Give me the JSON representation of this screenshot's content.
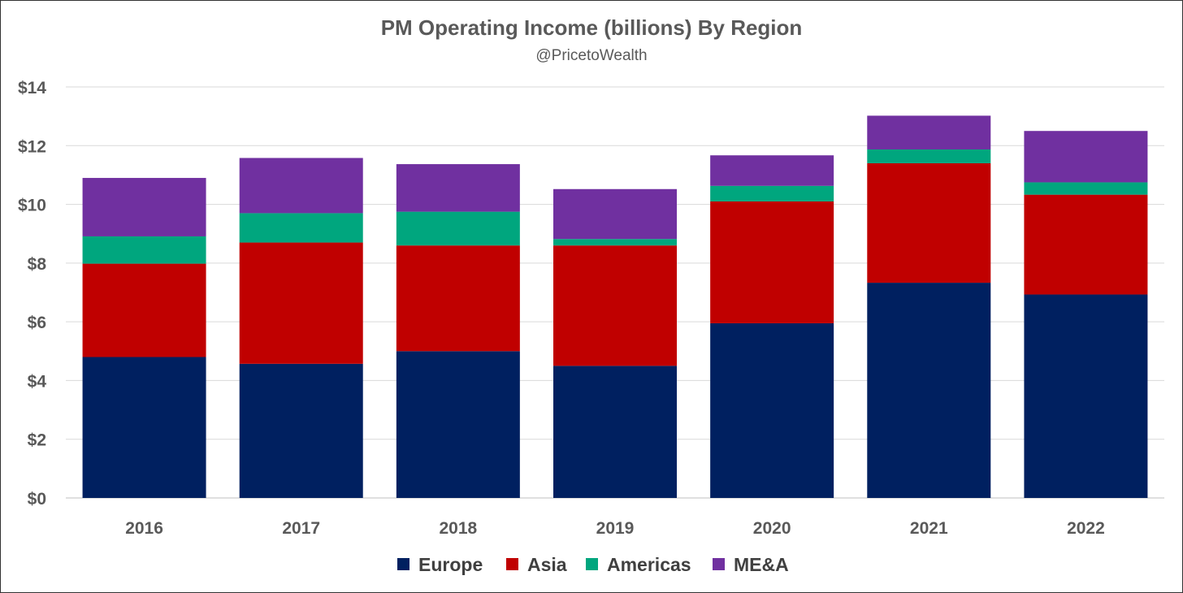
{
  "chart_data": {
    "type": "bar",
    "stacked": true,
    "title": "PM Operating Income (billions) By Region",
    "subtitle": "@PricetoWealth",
    "xlabel": "",
    "ylabel": "",
    "ylim": [
      0,
      14
    ],
    "yticks": [
      0,
      2,
      4,
      6,
      8,
      10,
      12,
      14
    ],
    "ytick_labels": [
      "$0",
      "$2",
      "$4",
      "$6",
      "$8",
      "$10",
      "$12",
      "$14"
    ],
    "grid": true,
    "legend_position": "bottom",
    "categories": [
      "2016",
      "2017",
      "2018",
      "2019",
      "2020",
      "2021",
      "2022"
    ],
    "series": [
      {
        "name": "Europe",
        "color": "#002060",
        "values": [
          4.8,
          4.57,
          5.0,
          4.5,
          5.95,
          7.33,
          6.93
        ]
      },
      {
        "name": "Asia",
        "color": "#C00000",
        "values": [
          3.18,
          4.13,
          3.6,
          4.1,
          4.15,
          4.07,
          3.4
        ]
      },
      {
        "name": "Americas",
        "color": "#00A67E",
        "values": [
          0.93,
          1.0,
          1.15,
          0.22,
          0.53,
          0.47,
          0.42
        ]
      },
      {
        "name": "ME&A",
        "color": "#7030A0",
        "values": [
          1.99,
          1.88,
          1.62,
          1.7,
          1.04,
          1.15,
          1.75
        ]
      }
    ]
  }
}
